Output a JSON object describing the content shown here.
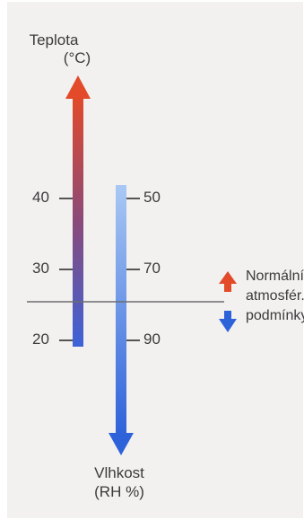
{
  "temperature": {
    "title": "Teplota",
    "unit": "(°C)",
    "ticks": [
      {
        "label": "40",
        "value": 40
      },
      {
        "label": "30",
        "value": 30
      },
      {
        "label": "20",
        "value": 20
      }
    ],
    "color_top": "#e24a2a",
    "color_bottom": "#3d63d8"
  },
  "humidity": {
    "title": "Vlhkost",
    "unit": "(RH %)",
    "ticks": [
      {
        "label": "50",
        "value": 50
      },
      {
        "label": "70",
        "value": 70
      },
      {
        "label": "90",
        "value": 90
      }
    ],
    "color_top": "#a9c8f4",
    "color_bottom": "#2e62d9"
  },
  "normal_conditions": {
    "lines": [
      "Normální",
      "atmosfér.",
      "podmínky"
    ],
    "up_arrow_color": "#e24a2a",
    "down_arrow_color": "#2e62d9"
  },
  "panel_color": "#f2f1ef"
}
